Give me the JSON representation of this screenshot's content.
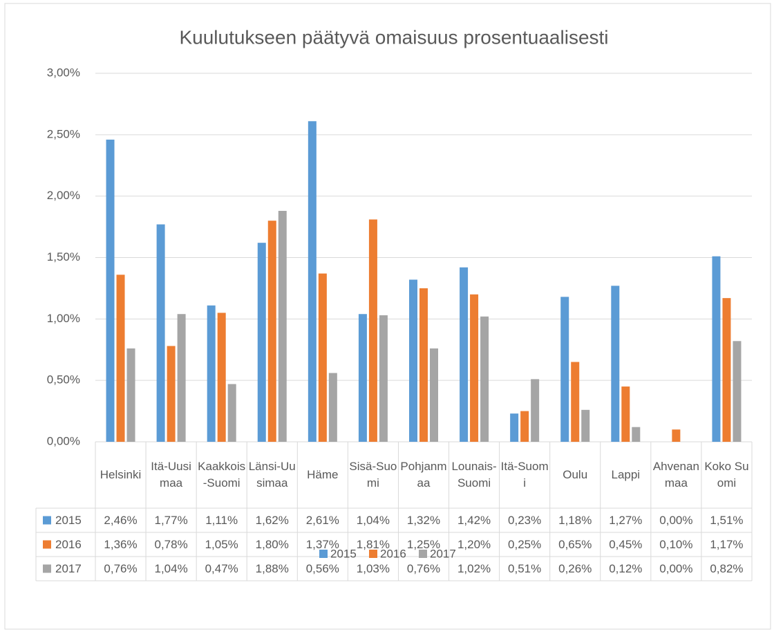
{
  "chart_data": {
    "type": "bar",
    "title": "Kuulutukseen päätyvä omaisuus prosentuaalisesti",
    "categories": [
      "Helsinki",
      "Itä-Uusimaa",
      "Kaakkois-Suomi",
      "Länsi-Uusimaa",
      "Häme",
      "Sisä-Suomi",
      "Pohjanmaa",
      "Lounais-Suomi",
      "Itä-Suomi",
      "Oulu",
      "Lappi",
      "Ahvenanmaa",
      "Koko Suomi"
    ],
    "series": [
      {
        "name": "2015",
        "color": "#5b9bd5",
        "values": [
          2.46,
          1.77,
          1.11,
          1.62,
          2.61,
          1.04,
          1.32,
          1.42,
          0.23,
          1.18,
          1.27,
          0.0,
          1.51
        ],
        "value_labels": [
          "2,46%",
          "1,77%",
          "1,11%",
          "1,62%",
          "2,61%",
          "1,04%",
          "1,32%",
          "1,42%",
          "0,23%",
          "1,18%",
          "1,27%",
          "0,00%",
          "1,51%"
        ]
      },
      {
        "name": "2016",
        "color": "#ed7d31",
        "values": [
          1.36,
          0.78,
          1.05,
          1.8,
          1.37,
          1.81,
          1.25,
          1.2,
          0.25,
          0.65,
          0.45,
          0.1,
          1.17
        ],
        "value_labels": [
          "1,36%",
          "0,78%",
          "1,05%",
          "1,80%",
          "1,37%",
          "1,81%",
          "1,25%",
          "1,20%",
          "0,25%",
          "0,65%",
          "0,45%",
          "0,10%",
          "1,17%"
        ]
      },
      {
        "name": "2017",
        "color": "#a5a5a5",
        "values": [
          0.76,
          1.04,
          0.47,
          1.88,
          0.56,
          1.03,
          0.76,
          1.02,
          0.51,
          0.26,
          0.12,
          0.0,
          0.82
        ],
        "value_labels": [
          "0,76%",
          "1,04%",
          "0,47%",
          "1,88%",
          "0,56%",
          "1,03%",
          "0,76%",
          "1,02%",
          "0,51%",
          "0,26%",
          "0,12%",
          "0,00%",
          "0,82%"
        ]
      }
    ],
    "ylim": [
      0,
      3
    ],
    "yticks": [
      {
        "value": 0,
        "label": "0,00%"
      },
      {
        "value": 0.5,
        "label": "0,50%"
      },
      {
        "value": 1,
        "label": "1,00%"
      },
      {
        "value": 1.5,
        "label": "1,50%"
      },
      {
        "value": 2,
        "label": "2,00%"
      },
      {
        "value": 2.5,
        "label": "2,50%"
      },
      {
        "value": 3,
        "label": "3,00%"
      }
    ],
    "grid": true,
    "legend": "bottom"
  }
}
